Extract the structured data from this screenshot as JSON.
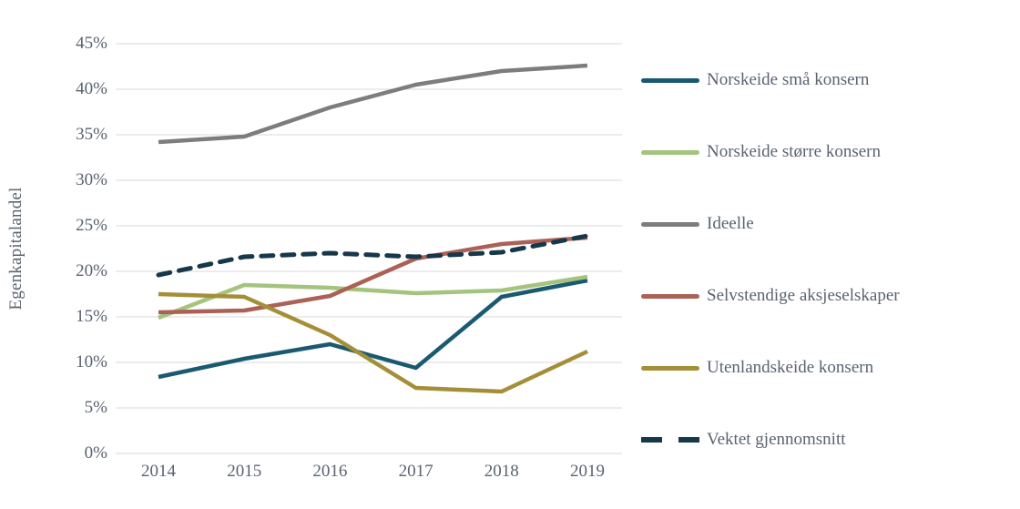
{
  "chart_data": {
    "type": "line",
    "title": "",
    "xlabel": "",
    "ylabel": "Egenkapitalandel",
    "x": [
      "2014",
      "2015",
      "2016",
      "2017",
      "2018",
      "2019"
    ],
    "y_ticks": [
      "0%",
      "5%",
      "10%",
      "15%",
      "20%",
      "25%",
      "30%",
      "35%",
      "40%",
      "45%"
    ],
    "ylim": [
      0,
      45
    ],
    "grid": true,
    "legend_position": "right",
    "series": [
      {
        "name": "Norskeide små konsern",
        "color": "#1a5a71",
        "dash": false,
        "values": [
          8.4,
          10.4,
          12.0,
          9.4,
          17.2,
          19.0
        ]
      },
      {
        "name": "Norskeide større konsern",
        "color": "#a4c47e",
        "dash": false,
        "values": [
          14.9,
          18.5,
          18.2,
          17.6,
          17.9,
          19.4
        ]
      },
      {
        "name": "Ideelle",
        "color": "#7d7d80",
        "dash": false,
        "values": [
          34.2,
          34.8,
          38.0,
          40.5,
          42.0,
          42.6
        ]
      },
      {
        "name": "Selvstendige aksjeselskaper",
        "color": "#ac6156",
        "dash": false,
        "values": [
          15.5,
          15.7,
          17.3,
          21.4,
          23.0,
          23.7
        ]
      },
      {
        "name": "Utenlandskeide konsern",
        "color": "#a48f38",
        "dash": false,
        "values": [
          17.5,
          17.2,
          13.0,
          7.2,
          6.8,
          11.2
        ]
      },
      {
        "name": "Vektet gjennomsnitt",
        "color": "#16384a",
        "dash": true,
        "values": [
          19.6,
          21.6,
          22.0,
          21.6,
          22.1,
          23.9
        ]
      }
    ]
  },
  "colors": {
    "gridline": "#d9d9d9",
    "axis_text": "#5a6370",
    "background": "#ffffff"
  }
}
